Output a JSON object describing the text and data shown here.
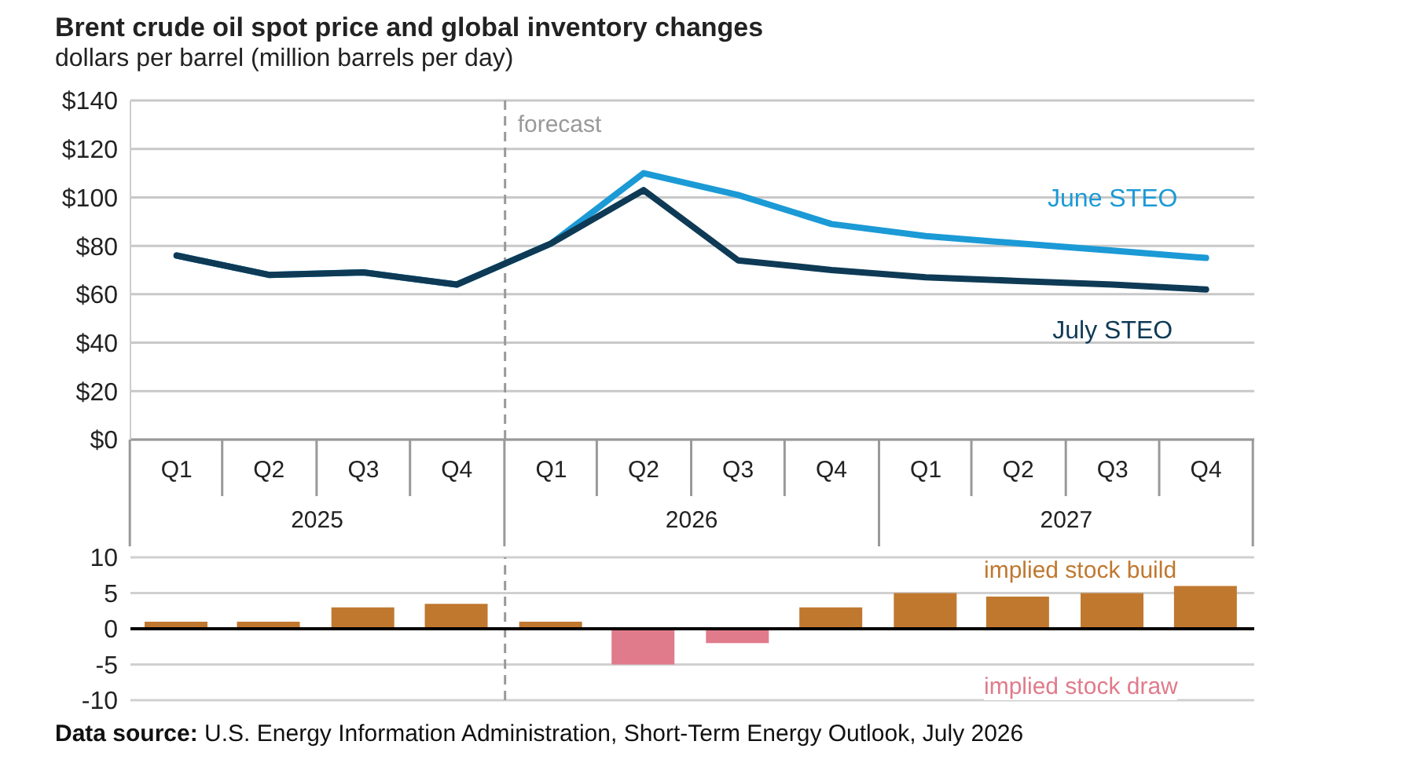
{
  "chart_data": [
    {
      "type": "line",
      "title": "Brent crude oil spot price and global inventory changes",
      "subtitle": "dollars per barrel (million barrels per day)",
      "x": [
        "2025-02-15",
        "2025-05-16",
        "2025-08-16",
        "2025-11-15",
        "2026-02-15",
        "2026-05-16",
        "2026-08-16",
        "2026-11-15",
        "2027-02-15",
        "2027-05-16",
        "2027-08-16",
        "2027-11-15"
      ],
      "xlim": [
        "2025-01-01",
        "2028-01-01"
      ],
      "xticks": [
        {
          "value": "2025-02-15",
          "label": "Q1"
        },
        {
          "value": "2025-05-16",
          "label": "Q2"
        },
        {
          "value": "2025-08-16",
          "label": "Q3"
        },
        {
          "value": "2025-11-15",
          "label": "Q4"
        },
        {
          "value": "2026-02-15",
          "label": "Q1"
        },
        {
          "value": "2026-05-16",
          "label": "Q2"
        },
        {
          "value": "2026-08-16",
          "label": "Q3"
        },
        {
          "value": "2026-11-15",
          "label": "Q4"
        },
        {
          "value": "2027-02-15",
          "label": "Q1"
        },
        {
          "value": "2027-05-16",
          "label": "Q2"
        },
        {
          "value": "2027-08-16",
          "label": "Q3"
        },
        {
          "value": "2027-11-15",
          "label": "Q4"
        }
      ],
      "annotations": [
        "2025",
        "2026",
        "2027"
      ],
      "series": [
        {
          "name": "June STEO",
          "color": "#1b9ad6",
          "values": [
            76,
            68,
            69,
            64,
            81,
            110,
            101,
            89,
            84,
            81,
            78,
            75
          ]
        },
        {
          "name": "July STEO",
          "color": "#0e3a55",
          "values": [
            76,
            68,
            69,
            64,
            81,
            103,
            74,
            70,
            67,
            65.5,
            64,
            62
          ]
        }
      ],
      "ylim": [
        0,
        140
      ],
      "yticks": [
        {
          "value": 0,
          "label": "$0"
        },
        {
          "value": 20,
          "label": "$20"
        },
        {
          "value": 40,
          "label": "$40"
        },
        {
          "value": 60,
          "label": "$60"
        },
        {
          "value": 80,
          "label": "$80"
        },
        {
          "value": 100,
          "label": "$100"
        },
        {
          "value": 120,
          "label": "$120"
        },
        {
          "value": 140,
          "label": "$140"
        }
      ],
      "ref_lines": [
        {
          "axis": "x",
          "value": "2026-01-01",
          "label": "forecast",
          "color": "#999999",
          "line_style": "dashed"
        }
      ],
      "grid": "y",
      "legend": false,
      "marker": "none",
      "line_style": "solid"
    },
    {
      "type": "bar",
      "x": [
        "2025-02-15",
        "2025-05-16",
        "2025-08-16",
        "2025-11-15",
        "2026-02-15",
        "2026-05-16",
        "2026-08-16",
        "2026-11-15",
        "2027-02-15",
        "2027-05-16",
        "2027-08-16",
        "2027-11-15"
      ],
      "xlim": [
        "2025-01-01",
        "2028-01-01"
      ],
      "values": [
        1,
        1,
        3,
        3.5,
        1,
        -5,
        -2,
        3,
        5,
        4.5,
        5,
        6
      ],
      "colors": [
        "#c0782f",
        "#c0782f",
        "#c0782f",
        "#c0782f",
        "#c0782f",
        "#e07b8b",
        "#e07b8b",
        "#c0782f",
        "#c0782f",
        "#c0782f",
        "#c0782f",
        "#c0782f"
      ],
      "ylim": [
        -10,
        10
      ],
      "yticks": [
        -10,
        -5,
        0,
        5,
        10
      ],
      "ref_lines": [
        {
          "axis": "x",
          "value": "2026-01-01",
          "color": "#999999",
          "line_style": "dashed"
        }
      ],
      "annotations": [
        "implied stock build",
        "implied stock draw",
        "Data source: U.S. Energy Information Administration, Short-Term Energy Outlook, July 2026"
      ],
      "grid": "y",
      "tick_labels": "y",
      "legend": false
    }
  ]
}
